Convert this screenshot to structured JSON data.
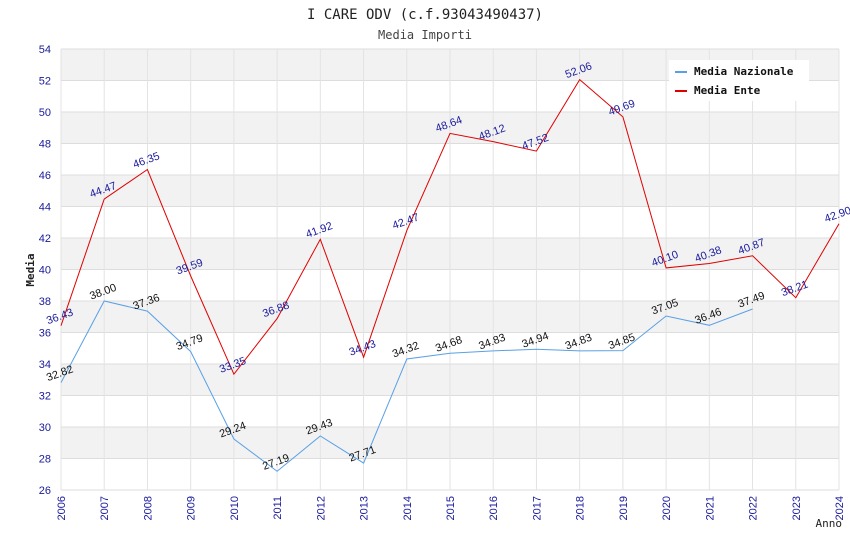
{
  "chart_data": {
    "type": "line",
    "title": "I CARE ODV (c.f.93043490437)",
    "subtitle": "Media Importi",
    "xlabel": "Anno",
    "ylabel": "Media",
    "ylim": [
      26,
      54
    ],
    "yticks": [
      26,
      28,
      30,
      32,
      34,
      36,
      38,
      40,
      42,
      44,
      46,
      48,
      50,
      52,
      54
    ],
    "categories": [
      "2006",
      "2007",
      "2008",
      "2009",
      "2010",
      "2011",
      "2012",
      "2013",
      "2014",
      "2015",
      "2016",
      "2017",
      "2018",
      "2019",
      "2020",
      "2021",
      "2022",
      "2023",
      "2024"
    ],
    "grid": true,
    "legend_position": "top-right",
    "series": [
      {
        "name": "Media Nazionale",
        "color": "#5aa0e6",
        "label_color": "#111111",
        "values": [
          32.82,
          38.0,
          37.36,
          34.79,
          29.24,
          27.19,
          29.43,
          27.71,
          34.32,
          34.68,
          34.83,
          34.94,
          34.83,
          34.85,
          37.05,
          36.46,
          37.49,
          null,
          null
        ],
        "labels": [
          "32.82",
          "38.00",
          "37.36",
          "34.79",
          "29.24",
          "27.19",
          "29.43",
          "27.71",
          "34.32",
          "34.68",
          "34.83",
          "34.94",
          "34.83",
          "34.85",
          "37.05",
          "36.46",
          "37.49",
          null,
          null
        ]
      },
      {
        "name": "Media Ente",
        "color": "#e00000",
        "label_color": "#1a1a9c",
        "values": [
          36.43,
          44.47,
          46.35,
          39.59,
          33.35,
          36.88,
          41.92,
          34.43,
          42.47,
          48.64,
          48.12,
          47.52,
          52.06,
          49.69,
          40.1,
          40.38,
          40.87,
          38.21,
          42.9
        ],
        "labels": [
          "36.43",
          "44.47",
          "46.35",
          "39.59",
          "33.35",
          "36.88",
          "41.92",
          "34.43",
          "42.47",
          "48.64",
          "48.12",
          "47.52",
          "52.06",
          "49.69",
          "40.10",
          "40.38",
          "40.87",
          "38.21",
          "42.90"
        ]
      }
    ]
  }
}
